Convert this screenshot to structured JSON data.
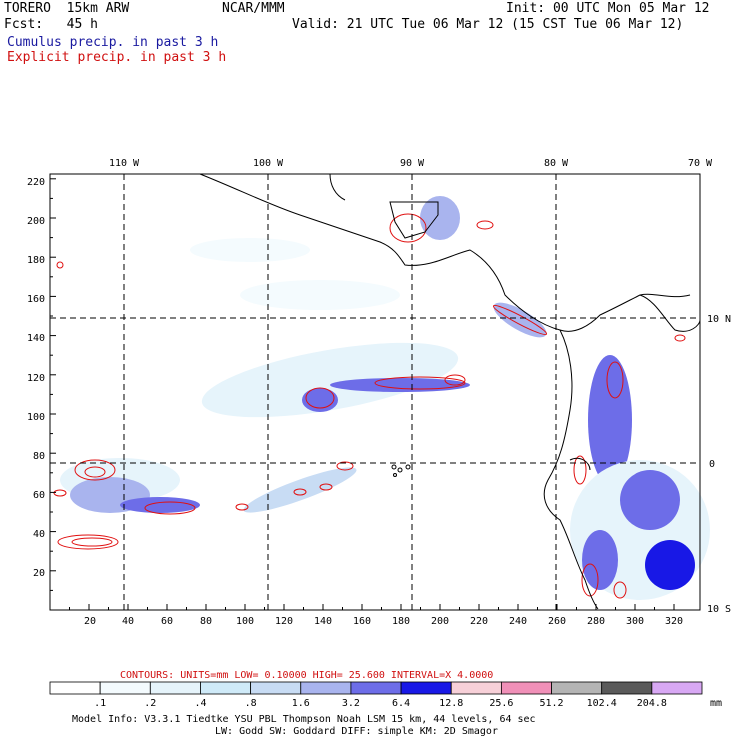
{
  "header": {
    "model": "TORERO  15km ARW",
    "org": "NCAR/MMM",
    "init": "Init: 00 UTC Mon 05 Mar 12",
    "fcst": "Fcst:   45 h",
    "valid": "Valid: 21 UTC Tue 06 Mar 12 (15 CST Tue 06 Mar 12)",
    "field1": "Cumulus precip. in past 3 h",
    "field2": "Explicit precip. in past 3 h"
  },
  "map": {
    "lon_labels": [
      "110 W",
      "100 W",
      "90 W",
      "80 W",
      "70 W"
    ],
    "lat_labels": [
      "10 N",
      "0",
      "10 S"
    ],
    "y_ticks": [
      "220",
      "200",
      "180",
      "160",
      "140",
      "120",
      "100",
      "80",
      "60",
      "40",
      "20"
    ],
    "x_ticks": [
      "20",
      "40",
      "60",
      "80",
      "100",
      "120",
      "140",
      "160",
      "180",
      "200",
      "220",
      "240",
      "260",
      "280",
      "300",
      "320"
    ],
    "colors": {
      "cumulus_light": "#e8f4fb",
      "cumulus_mid": "#9aa8f0",
      "cumulus_dark": "#1010e0",
      "explicit_contour": "#e01010",
      "coast": "#000000"
    }
  },
  "contours": {
    "label": "CONTOURS:  UNITS=mm  LOW= 0.10000     HIGH=  25.600     INTERVAL=X  4.0000"
  },
  "colorbar": {
    "unit": "mm",
    "labels": [
      ".1",
      ".2",
      ".4",
      ".8",
      "1.6",
      "3.2",
      "6.4",
      "12.8",
      "25.6",
      "51.2",
      "102.4",
      "204.8"
    ],
    "colors": [
      "#ffffff",
      "#f4fbfe",
      "#e6f4fb",
      "#cfeaf8",
      "#c8dcf4",
      "#a9b4ee",
      "#6d6de8",
      "#1818e6",
      "#f7d0d8",
      "#f090b8",
      "#b4b4b4",
      "#5a5a5a",
      "#d8a8f4"
    ]
  },
  "footer": {
    "line1": "Model Info: V3.3.1    Tiedtke YSU PBL  Thompson    Noah LSM  15 km,   44 levels,   64 sec",
    "line2": "LW: Godd SW: Goddard DIFF: simple KM: 2D Smagor"
  }
}
